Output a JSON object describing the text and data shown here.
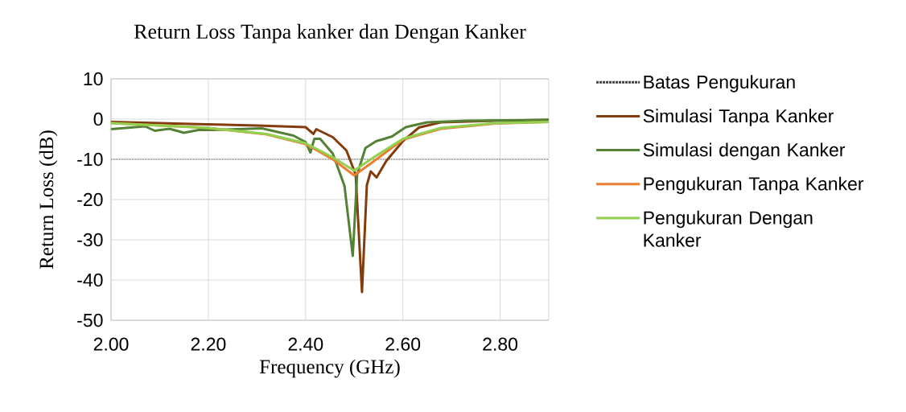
{
  "chart_data": {
    "type": "line",
    "title": "Return Loss Tanpa kanker dan Dengan Kanker",
    "xlabel": "Frequency (GHz)",
    "ylabel": "Return Loss (dB)",
    "xlim": [
      2.0,
      2.9
    ],
    "ylim": [
      -50,
      10
    ],
    "xticks": [
      {
        "value": 2.0,
        "label": "2.00"
      },
      {
        "value": 2.2,
        "label": "2.20"
      },
      {
        "value": 2.4,
        "label": "2.40"
      },
      {
        "value": 2.6,
        "label": "2.60"
      },
      {
        "value": 2.8,
        "label": "2.80"
      }
    ],
    "yticks": [
      10,
      0,
      -10,
      -20,
      -30,
      -40,
      -50
    ],
    "grid": true,
    "legend": "right",
    "line_style": "solid",
    "marker": "none",
    "ref_lines": [
      {
        "axis": "y",
        "value": -10,
        "label": "Batas Pengukuran",
        "color": "#404040",
        "line_style": "dotted"
      }
    ],
    "series": [
      {
        "name": "Simulasi Tanpa Kanker",
        "color": "#843c0c",
        "x": [
          2.0,
          2.1,
          2.2,
          2.3,
          2.4,
          2.416,
          2.422,
          2.456,
          2.484,
          2.503,
          2.516,
          2.526,
          2.534,
          2.546,
          2.566,
          2.6,
          2.633,
          2.678,
          2.79,
          2.9
        ],
        "values": [
          -0.7,
          -1.0,
          -1.3,
          -1.6,
          -2.0,
          -3.7,
          -2.5,
          -4.5,
          -7.8,
          -13.8,
          -43,
          -16.4,
          -13,
          -14.5,
          -10.4,
          -5.5,
          -2.1,
          -0.8,
          -0.4,
          -0.2
        ]
      },
      {
        "name": "Simulasi dengan Kanker",
        "color": "#548235",
        "x": [
          2.0,
          2.07,
          2.09,
          2.12,
          2.15,
          2.18,
          2.21,
          2.31,
          2.375,
          2.4,
          2.41,
          2.418,
          2.43,
          2.456,
          2.48,
          2.497,
          2.506,
          2.523,
          2.545,
          2.562,
          2.578,
          2.606,
          2.65,
          2.73,
          2.9
        ],
        "values": [
          -2.5,
          -1.8,
          -2.9,
          -2.4,
          -3.4,
          -2.7,
          -2.7,
          -2.3,
          -4.1,
          -5.7,
          -8.3,
          -4.9,
          -4.9,
          -8.6,
          -16.6,
          -34,
          -13.8,
          -7.2,
          -5.5,
          -4.9,
          -4.3,
          -2.0,
          -0.8,
          -0.4,
          -0.2
        ]
      },
      {
        "name": "Pengukuran Tanpa Kanker",
        "color": "#ed7d31",
        "x": [
          2.0,
          2.2,
          2.32,
          2.4,
          2.456,
          2.5,
          2.54,
          2.6,
          2.678,
          2.79,
          2.9
        ],
        "values": [
          -1.0,
          -2.2,
          -3.8,
          -6.2,
          -10,
          -14,
          -10.5,
          -5.1,
          -2.4,
          -1.1,
          -0.7
        ]
      },
      {
        "name": "Pengukuran Dengan Kanker",
        "color": "#92d050",
        "x": [
          2.0,
          2.2,
          2.32,
          2.4,
          2.456,
          2.5,
          2.54,
          2.6,
          2.678,
          2.79,
          2.9
        ],
        "values": [
          -1.0,
          -2.2,
          -3.7,
          -6.0,
          -9.5,
          -12.8,
          -9.5,
          -4.9,
          -2.2,
          -1.0,
          -0.7
        ]
      }
    ]
  }
}
